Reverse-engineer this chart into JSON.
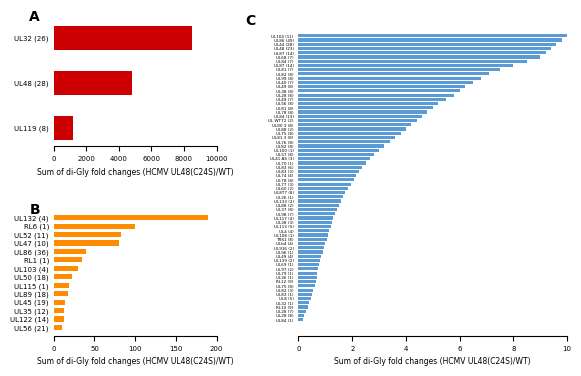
{
  "panel_A": {
    "labels": [
      "UL32 (26)",
      "UL48 (28)",
      "UL119 (8)"
    ],
    "values": [
      8500,
      4800,
      1200
    ],
    "color": "#cc0000",
    "xlim": [
      0,
      10000
    ],
    "xticks": [
      0,
      2000,
      4000,
      6000,
      8000,
      10000
    ],
    "xlabel": "Sum of di-Gly fold changes (HCMV UL48(C24S)/WT)"
  },
  "panel_B": {
    "labels": [
      "UL132 (4)",
      "RL6 (1)",
      "UL52 (11)",
      "UL47 (10)",
      "UL86 (36)",
      "RL1 (1)",
      "UL103 (4)",
      "UL50 (18)",
      "UL115 (1)",
      "UL89 (18)",
      "UL45 (19)",
      "UL35 (12)",
      "UL122 (14)",
      "UL56 (21)"
    ],
    "values": [
      190,
      100,
      83,
      80,
      40,
      35,
      30,
      22,
      19,
      18,
      14,
      13,
      12,
      10
    ],
    "color": "#ff8c00",
    "xlim": [
      0,
      200
    ],
    "xticks": [
      0,
      50,
      100,
      150,
      200
    ],
    "xlabel": "Sum of di-Gly fold changes (HCMV UL48(C24S)/WT)"
  },
  "panel_C": {
    "labels": [
      "UL104 (11)",
      "UL86 (49)",
      "UL44 (28)",
      "UL48 (23)",
      "UL87 (14)",
      "UL68 (7)",
      "UL84 (7)",
      "UL87 (14)",
      "UL81 (7)",
      "UL82 (8)",
      "UL99 (8)",
      "UL40 (7)",
      "UL49 (8)",
      "UL38 (8)",
      "UL28 (8)",
      "UL49 (7)",
      "UL56 (8)",
      "UL81 (8)",
      "UL78 (8)",
      "UL84 (13)",
      "UL WT72 (2)",
      "UL80 3 (8)",
      "UL88 (2)",
      "UL75 (8)",
      "UL81 3 (8)",
      "UL76 (8)",
      "UL82 (8)",
      "UL100 (1)",
      "UL57 (8)",
      "UL41 AS (3)",
      "UL70 (1)",
      "UL83 (6)",
      "UL83 (3)",
      "UL74 (4)",
      "UL78 (8)",
      "UL77 (3)",
      "UL60 (2)",
      "UL8T7 (8)",
      "UL26 (1)",
      "UL133 (2)",
      "UL88 (2)",
      "UL37 (8)",
      "UL98 (7)",
      "UL117 (4)",
      "UL38 (3)",
      "UL113 (5)",
      "UL4 (4)",
      "UL108 (1)",
      "TRS1 (8)",
      "ULb4 (4)",
      "UL916 (2)",
      "UL96 (1)",
      "UL49 (4)",
      "UL139 (2)",
      "UL69 (1)",
      "UL97 (2)",
      "UL79 (1)",
      "UL36 (1)",
      "RL12 (9)",
      "UL75 (8)",
      "UL82 (3)",
      "UL83 (1)",
      "UL8 (5)",
      "UL32 (1)",
      "RL10 (9)",
      "UL28 (7)",
      "UL28 (8)",
      "UL84 (1)"
    ],
    "values": [
      10.0,
      9.8,
      9.6,
      9.4,
      9.2,
      9.0,
      8.5,
      8.0,
      7.5,
      7.1,
      6.8,
      6.5,
      6.2,
      6.0,
      5.8,
      5.5,
      5.2,
      5.0,
      4.8,
      4.6,
      4.4,
      4.2,
      4.0,
      3.8,
      3.6,
      3.4,
      3.2,
      3.0,
      2.8,
      2.65,
      2.5,
      2.38,
      2.25,
      2.15,
      2.05,
      1.95,
      1.85,
      1.75,
      1.65,
      1.58,
      1.5,
      1.42,
      1.35,
      1.3,
      1.25,
      1.2,
      1.15,
      1.1,
      1.05,
      1.0,
      0.95,
      0.9,
      0.85,
      0.8,
      0.76,
      0.73,
      0.7,
      0.68,
      0.65,
      0.6,
      0.55,
      0.5,
      0.45,
      0.4,
      0.35,
      0.28,
      0.22,
      0.18
    ],
    "color": "#5b9bd5",
    "xlim": [
      0,
      10
    ],
    "xticks": [
      0,
      2,
      4,
      6,
      8,
      10
    ],
    "xlabel": "Sum of di-Gly fold changes (HCMV UL48(C24S)/WT)"
  },
  "label_fontsize": 5,
  "tick_fontsize": 5,
  "xlabel_fontsize": 5.5,
  "panel_label_fontsize": 10,
  "background_color": "#ffffff"
}
